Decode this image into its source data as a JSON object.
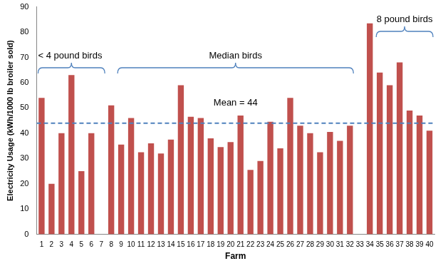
{
  "chart_data": {
    "type": "bar",
    "categories": [
      "1",
      "2",
      "3",
      "4",
      "5",
      "6",
      "7",
      "8",
      "9",
      "10",
      "11",
      "12",
      "13",
      "14",
      "15",
      "16",
      "17",
      "18",
      "19",
      "20",
      "21",
      "22",
      "23",
      "24",
      "25",
      "26",
      "27",
      "28",
      "29",
      "30",
      "31",
      "32",
      "33",
      "34",
      "35",
      "36",
      "37",
      "38",
      "39",
      "40"
    ],
    "values": [
      54,
      20,
      40,
      63,
      25,
      40,
      null,
      51,
      35.5,
      46,
      32.5,
      36,
      32,
      37.5,
      59,
      46.5,
      46,
      38,
      34.5,
      36.5,
      47,
      25.5,
      29,
      44.5,
      34,
      54,
      43,
      40,
      32.5,
      40.5,
      37,
      43,
      null,
      83.5,
      64,
      59,
      68,
      49,
      47,
      41
    ],
    "color": "#c0504d",
    "x_label": "Farm",
    "y_label": "Electricity Usage (kWh/1000 lb broiler sold)",
    "ylim": [
      0,
      90
    ],
    "yticks": [
      0,
      10,
      20,
      30,
      40,
      50,
      60,
      70,
      80,
      90
    ],
    "grid": false,
    "reference_line": {
      "value": 44,
      "label": "Mean = 44",
      "color": "#4f81bd",
      "line_style": "dashed"
    },
    "groups": [
      {
        "label": "< 4 pound birds",
        "from": "1",
        "to": "7"
      },
      {
        "label": "Median birds",
        "from": "9",
        "to": "32"
      },
      {
        "label": "8 pound birds",
        "from": "35",
        "to": "40"
      }
    ]
  }
}
